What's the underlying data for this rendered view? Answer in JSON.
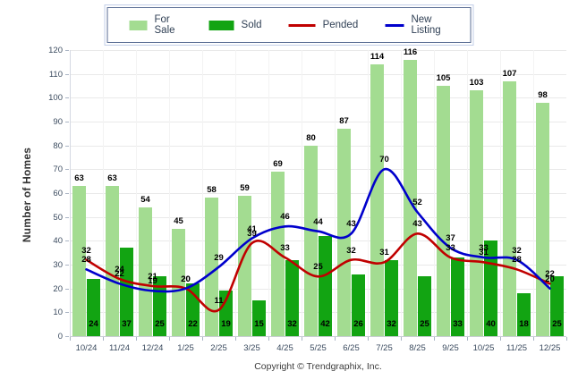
{
  "legend": {
    "items": [
      "For Sale",
      "Sold",
      "Pended",
      "New Listing"
    ]
  },
  "chart_data": {
    "type": "bar",
    "title": "",
    "categories": [
      "10/24",
      "11/24",
      "12/24",
      "1/25",
      "2/25",
      "3/25",
      "4/25",
      "5/25",
      "6/25",
      "7/25",
      "8/25",
      "9/25",
      "10/25",
      "11/25",
      "12/25"
    ],
    "series": [
      {
        "name": "For Sale",
        "kind": "bar",
        "color": "#a3dc91",
        "values": [
          63,
          63,
          54,
          45,
          58,
          59,
          69,
          80,
          87,
          114,
          116,
          105,
          103,
          107,
          98
        ]
      },
      {
        "name": "Sold",
        "kind": "bar",
        "color": "#12a412",
        "values": [
          24,
          37,
          25,
          22,
          19,
          15,
          32,
          42,
          26,
          32,
          25,
          33,
          40,
          18,
          25
        ]
      },
      {
        "name": "Pended",
        "kind": "line",
        "color": "#c00000",
        "values": [
          32,
          24,
          21,
          20,
          11,
          39,
          33,
          25,
          32,
          31,
          43,
          33,
          31,
          28,
          22
        ]
      },
      {
        "name": "New Listing",
        "kind": "line",
        "color": "#0000cc",
        "values": [
          28,
          22,
          19,
          20,
          29,
          41,
          46,
          44,
          43,
          70,
          52,
          37,
          33,
          32,
          20
        ]
      }
    ],
    "xlabel": "",
    "ylabel": "Number of Homes",
    "ylim": [
      0,
      120
    ],
    "ytick_step": 10,
    "grid": true,
    "legend_position": "top"
  },
  "footer": {
    "copyright": "Copyright © Trendgraphix, Inc."
  }
}
